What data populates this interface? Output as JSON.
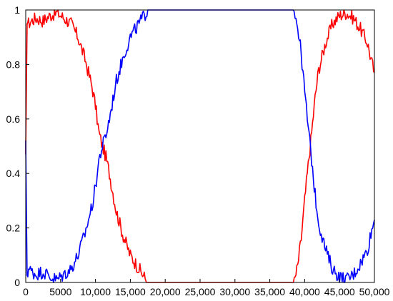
{
  "chart_data": {
    "type": "line",
    "title": "",
    "xlabel": "",
    "ylabel": "",
    "xlim": [
      0,
      50000
    ],
    "ylim": [
      0,
      1
    ],
    "grid": false,
    "legend": "none",
    "x_ticks": [
      0,
      5000,
      10000,
      15000,
      20000,
      25000,
      30000,
      35000,
      40000,
      45000,
      50000
    ],
    "x_tick_labels": [
      "0",
      "5000",
      "10,000",
      "15,000",
      "20,000",
      "25,000",
      "30,000",
      "35,000",
      "40,000",
      "45,000",
      "50,000"
    ],
    "y_ticks": [
      0,
      0.2,
      0.4,
      0.6,
      0.8,
      1
    ],
    "y_tick_labels": [
      "0",
      "0.2",
      "0.4",
      "0.6",
      "0.8",
      "1"
    ],
    "series": [
      {
        "color": "#ff0000",
        "x": [
          0,
          200,
          400,
          800,
          1500,
          2500,
          3500,
          4500,
          5500,
          6500,
          7500,
          8500,
          9000,
          9500,
          10000,
          10500,
          11000,
          11500,
          12000,
          12500,
          13000,
          14000,
          15000,
          16000,
          17000,
          17500,
          18000,
          20000,
          25000,
          30000,
          35000,
          38500,
          39000,
          39500,
          40000,
          40500,
          41000,
          41500,
          42000,
          43000,
          44000,
          45000,
          46000,
          47000,
          48000,
          49000,
          49500,
          50000
        ],
        "y": [
          0.45,
          0.97,
          0.95,
          0.96,
          0.97,
          0.96,
          0.98,
          0.99,
          0.97,
          0.95,
          0.9,
          0.82,
          0.77,
          0.72,
          0.65,
          0.55,
          0.5,
          0.46,
          0.4,
          0.33,
          0.26,
          0.17,
          0.1,
          0.06,
          0.02,
          0.0,
          0.0,
          0.0,
          0.0,
          0.0,
          0.0,
          0.0,
          0.06,
          0.16,
          0.3,
          0.43,
          0.55,
          0.68,
          0.78,
          0.88,
          0.95,
          0.98,
          0.99,
          0.97,
          0.93,
          0.88,
          0.82,
          0.77
        ]
      },
      {
        "color": "#0000ff",
        "x": [
          0,
          200,
          400,
          800,
          1500,
          2500,
          3500,
          4500,
          5500,
          6500,
          7500,
          8500,
          9000,
          9500,
          10000,
          10500,
          11000,
          11500,
          12000,
          12500,
          13000,
          14000,
          15000,
          16000,
          17000,
          17500,
          18000,
          20000,
          25000,
          30000,
          35000,
          38500,
          39000,
          39500,
          40000,
          40500,
          41000,
          41500,
          42000,
          43000,
          44000,
          45000,
          46000,
          47000,
          48000,
          49000,
          49500,
          50000
        ],
        "y": [
          0.5,
          0.03,
          0.05,
          0.04,
          0.03,
          0.04,
          0.02,
          0.01,
          0.03,
          0.05,
          0.1,
          0.18,
          0.23,
          0.28,
          0.35,
          0.45,
          0.5,
          0.54,
          0.6,
          0.67,
          0.74,
          0.83,
          0.9,
          0.94,
          0.98,
          1.0,
          1.0,
          1.0,
          1.0,
          1.0,
          1.0,
          1.0,
          0.94,
          0.84,
          0.7,
          0.57,
          0.45,
          0.32,
          0.22,
          0.12,
          0.05,
          0.02,
          0.01,
          0.03,
          0.07,
          0.12,
          0.18,
          0.23
        ]
      }
    ]
  }
}
